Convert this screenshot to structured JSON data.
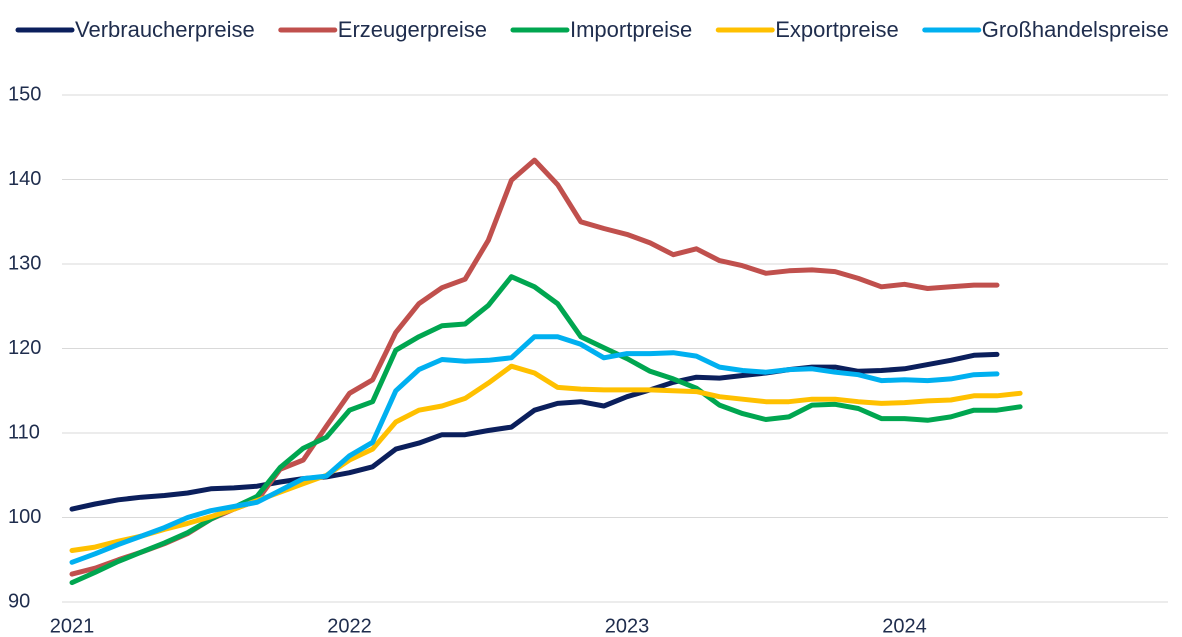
{
  "chart_data": {
    "type": "line",
    "categories": [
      "2021",
      null,
      null,
      null,
      null,
      null,
      null,
      null,
      null,
      null,
      null,
      null,
      "2022",
      null,
      null,
      null,
      null,
      null,
      null,
      null,
      null,
      null,
      null,
      null,
      "2023",
      null,
      null,
      null,
      null,
      null,
      null,
      null,
      null,
      null,
      null,
      null,
      "2024",
      null,
      null,
      null,
      null,
      null
    ],
    "series": [
      {
        "name": "Verbraucherpreise",
        "color": "#0b1f5c",
        "values": [
          101.0,
          101.6,
          102.1,
          102.4,
          102.6,
          102.9,
          103.4,
          103.5,
          103.7,
          104.2,
          104.6,
          104.8,
          105.3,
          106.0,
          108.1,
          108.8,
          109.8,
          109.8,
          110.3,
          110.7,
          112.7,
          113.5,
          113.7,
          113.2,
          114.3,
          115.1,
          116.0,
          116.6,
          116.5,
          116.8,
          117.1,
          117.5,
          117.8,
          117.8,
          117.3,
          117.4,
          117.6,
          118.1,
          118.6,
          119.2,
          119.3,
          null
        ]
      },
      {
        "name": "Erzeugerpreise",
        "color": "#c0504d",
        "values": [
          93.3,
          94.0,
          95.0,
          95.9,
          96.9,
          98.1,
          99.8,
          101.0,
          102.0,
          105.7,
          106.8,
          110.8,
          114.7,
          116.3,
          121.9,
          125.3,
          127.2,
          128.2,
          132.8,
          139.9,
          142.3,
          139.4,
          135.0,
          134.2,
          133.5,
          132.5,
          131.1,
          131.8,
          130.4,
          129.8,
          128.9,
          129.2,
          129.3,
          129.1,
          128.3,
          127.3,
          127.6,
          127.1,
          127.3,
          127.5,
          127.5,
          null
        ]
      },
      {
        "name": "Importpreise",
        "color": "#00a650",
        "values": [
          92.3,
          93.5,
          94.8,
          95.9,
          97.0,
          98.2,
          99.8,
          101.2,
          102.5,
          105.9,
          108.2,
          109.5,
          112.7,
          113.7,
          119.8,
          121.4,
          122.7,
          122.9,
          125.1,
          128.5,
          127.3,
          125.3,
          121.4,
          120.1,
          118.8,
          117.3,
          116.4,
          115.3,
          113.3,
          112.3,
          111.6,
          111.9,
          113.3,
          113.4,
          112.9,
          111.7,
          111.7,
          111.5,
          111.9,
          112.7,
          112.7,
          113.1
        ]
      },
      {
        "name": "Exportpreise",
        "color": "#ffc000",
        "values": [
          96.1,
          96.5,
          97.2,
          97.8,
          98.6,
          99.3,
          100.1,
          101.0,
          102.0,
          103.0,
          104.0,
          105.0,
          106.8,
          108.1,
          111.3,
          112.7,
          113.2,
          114.1,
          115.9,
          117.9,
          117.1,
          115.4,
          115.2,
          115.1,
          115.1,
          115.1,
          115.0,
          114.9,
          114.3,
          114.0,
          113.7,
          113.7,
          114.0,
          114.0,
          113.7,
          113.5,
          113.6,
          113.8,
          113.9,
          114.4,
          114.4,
          114.7
        ]
      },
      {
        "name": "Großhandelspreise",
        "color": "#00b0f0",
        "values": [
          94.7,
          95.7,
          96.8,
          97.8,
          98.8,
          100.0,
          100.8,
          101.3,
          101.8,
          103.2,
          104.6,
          104.9,
          107.3,
          108.9,
          115.0,
          117.5,
          118.7,
          118.5,
          118.6,
          118.9,
          121.4,
          121.4,
          120.5,
          118.9,
          119.4,
          119.4,
          119.5,
          119.1,
          117.8,
          117.4,
          117.2,
          117.5,
          117.6,
          117.2,
          116.9,
          116.2,
          116.3,
          116.2,
          116.4,
          116.9,
          117.0,
          null
        ]
      }
    ],
    "ylim": [
      90,
      150
    ],
    "yticks": [
      90,
      100,
      110,
      120,
      130,
      140,
      150
    ],
    "grid": true,
    "legend": "top"
  }
}
